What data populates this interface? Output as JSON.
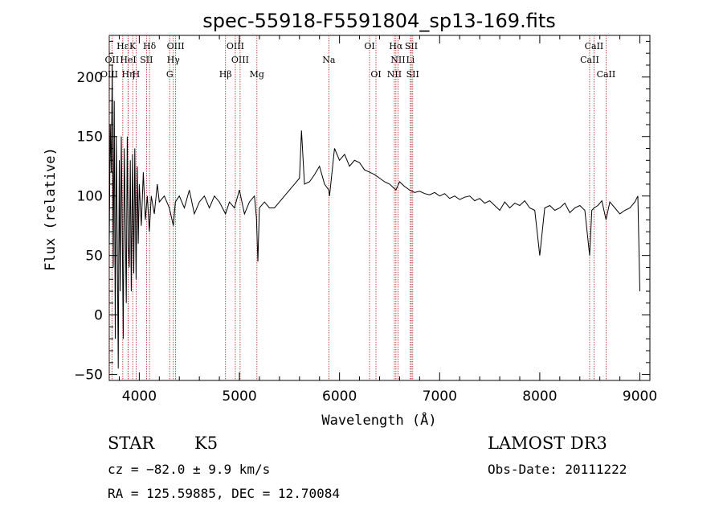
{
  "chart_data": {
    "type": "line",
    "title": "spec-55918-F5591804_sp13-169.fits",
    "xlabel": "Wavelength (Å)",
    "ylabel": "Flux (relative)",
    "xlim": [
      3700,
      9100
    ],
    "ylim": [
      -55,
      235
    ],
    "xticks": [
      4000,
      5000,
      6000,
      7000,
      8000,
      9000
    ],
    "xtick_labels": [
      "4000",
      "5000",
      "6000",
      "7000",
      "8000",
      "9000"
    ],
    "yticks": [
      -50,
      0,
      50,
      100,
      150,
      200
    ],
    "ytick_labels": [
      "−50",
      "0",
      "50",
      "100",
      "150",
      "200"
    ],
    "series": [
      {
        "name": "spectrum",
        "x": [
          3700,
          3710,
          3720,
          3730,
          3740,
          3750,
          3760,
          3770,
          3780,
          3790,
          3800,
          3810,
          3820,
          3830,
          3840,
          3850,
          3860,
          3870,
          3880,
          3890,
          3900,
          3910,
          3920,
          3933,
          3945,
          3955,
          3968,
          3980,
          3990,
          4000,
          4020,
          4040,
          4060,
          4080,
          4100,
          4120,
          4150,
          4180,
          4200,
          4250,
          4300,
          4340,
          4360,
          4400,
          4450,
          4500,
          4550,
          4600,
          4650,
          4700,
          4750,
          4800,
          4861,
          4900,
          4950,
          5000,
          5050,
          5100,
          5150,
          5170,
          5184,
          5200,
          5250,
          5300,
          5350,
          5400,
          5450,
          5500,
          5550,
          5600,
          5620,
          5650,
          5700,
          5750,
          5800,
          5850,
          5893,
          5900,
          5950,
          6000,
          6050,
          6100,
          6150,
          6200,
          6250,
          6300,
          6350,
          6400,
          6450,
          6500,
          6563,
          6600,
          6650,
          6700,
          6750,
          6800,
          6850,
          6900,
          6950,
          7000,
          7050,
          7100,
          7150,
          7200,
          7250,
          7300,
          7350,
          7400,
          7450,
          7500,
          7550,
          7600,
          7650,
          7700,
          7750,
          7800,
          7850,
          7900,
          7950,
          8000,
          8050,
          8100,
          8150,
          8200,
          8250,
          8300,
          8350,
          8400,
          8450,
          8498,
          8520,
          8542,
          8580,
          8620,
          8662,
          8700,
          8750,
          8800,
          8850,
          8900,
          8950,
          8980,
          9000
        ],
        "y": [
          60,
          160,
          120,
          210,
          40,
          180,
          -20,
          150,
          60,
          -45,
          130,
          20,
          150,
          70,
          -20,
          140,
          80,
          10,
          150,
          60,
          40,
          130,
          20,
          135,
          35,
          140,
          30,
          125,
          60,
          110,
          75,
          120,
          80,
          100,
          70,
          100,
          85,
          110,
          95,
          100,
          90,
          75,
          95,
          100,
          90,
          105,
          85,
          95,
          100,
          90,
          100,
          95,
          85,
          95,
          90,
          105,
          85,
          95,
          100,
          82,
          45,
          90,
          95,
          90,
          90,
          95,
          100,
          105,
          110,
          115,
          155,
          110,
          112,
          118,
          125,
          110,
          105,
          100,
          140,
          130,
          135,
          125,
          130,
          128,
          122,
          120,
          118,
          115,
          112,
          110,
          105,
          112,
          108,
          105,
          103,
          104,
          102,
          101,
          103,
          100,
          102,
          98,
          100,
          97,
          99,
          100,
          96,
          98,
          94,
          96,
          92,
          88,
          95,
          90,
          94,
          92,
          96,
          90,
          88,
          50,
          90,
          92,
          88,
          90,
          94,
          86,
          90,
          92,
          88,
          50,
          88,
          90,
          92,
          96,
          80,
          95,
          90,
          85,
          88,
          90,
          95,
          100,
          20
        ]
      }
    ],
    "spectral_lines": [
      {
        "label": "Hε",
        "wavelength": 3835,
        "row": 0
      },
      {
        "label": "K",
        "wavelength": 3934,
        "row": 0
      },
      {
        "label": "Hδ",
        "wavelength": 4102,
        "row": 0
      },
      {
        "label": "OIII",
        "wavelength": 4363,
        "row": 0
      },
      {
        "label": "OIII",
        "wavelength": 4959,
        "row": 0
      },
      {
        "label": "OI",
        "wavelength": 6300,
        "row": 0
      },
      {
        "label": "Hα",
        "wavelength": 6563,
        "row": 0
      },
      {
        "label": "SII",
        "wavelength": 6717,
        "row": 0
      },
      {
        "label": "CaII",
        "wavelength": 8542,
        "row": 0
      },
      {
        "label": "OII",
        "wavelength": 3727,
        "row": 1
      },
      {
        "label": "HeI",
        "wavelength": 3889,
        "row": 1
      },
      {
        "label": "SII",
        "wavelength": 4072,
        "row": 1
      },
      {
        "label": "Hγ",
        "wavelength": 4340,
        "row": 1
      },
      {
        "label": "OIII",
        "wavelength": 5007,
        "row": 1
      },
      {
        "label": "Na",
        "wavelength": 5893,
        "row": 1
      },
      {
        "label": "NII",
        "wavelength": 6584,
        "row": 1
      },
      {
        "label": "Li",
        "wavelength": 6708,
        "row": 1
      },
      {
        "label": "CaII",
        "wavelength": 8498,
        "row": 1
      },
      {
        "label": "OIII",
        "wavelength": 3700,
        "row": 2
      },
      {
        "label": "Hη",
        "wavelength": 3889,
        "row": 2
      },
      {
        "label": "H",
        "wavelength": 3968,
        "row": 2
      },
      {
        "label": "G",
        "wavelength": 4304,
        "row": 2
      },
      {
        "label": "Hβ",
        "wavelength": 4861,
        "row": 2
      },
      {
        "label": "Mg",
        "wavelength": 5175,
        "row": 2
      },
      {
        "label": "OI",
        "wavelength": 6364,
        "row": 2
      },
      {
        "label": "NII",
        "wavelength": 6548,
        "row": 2
      },
      {
        "label": "SII",
        "wavelength": 6731,
        "row": 2
      },
      {
        "label": "CaII",
        "wavelength": 8662,
        "row": 2
      }
    ]
  },
  "info": {
    "class": "STAR",
    "subclass": "K5",
    "survey": "LAMOST DR3",
    "cz": "cz = −82.0 ± 9.9 km/s",
    "obs_date": "Obs-Date: 20111222",
    "coords": "RA = 125.59885, DEC =  12.70084"
  }
}
